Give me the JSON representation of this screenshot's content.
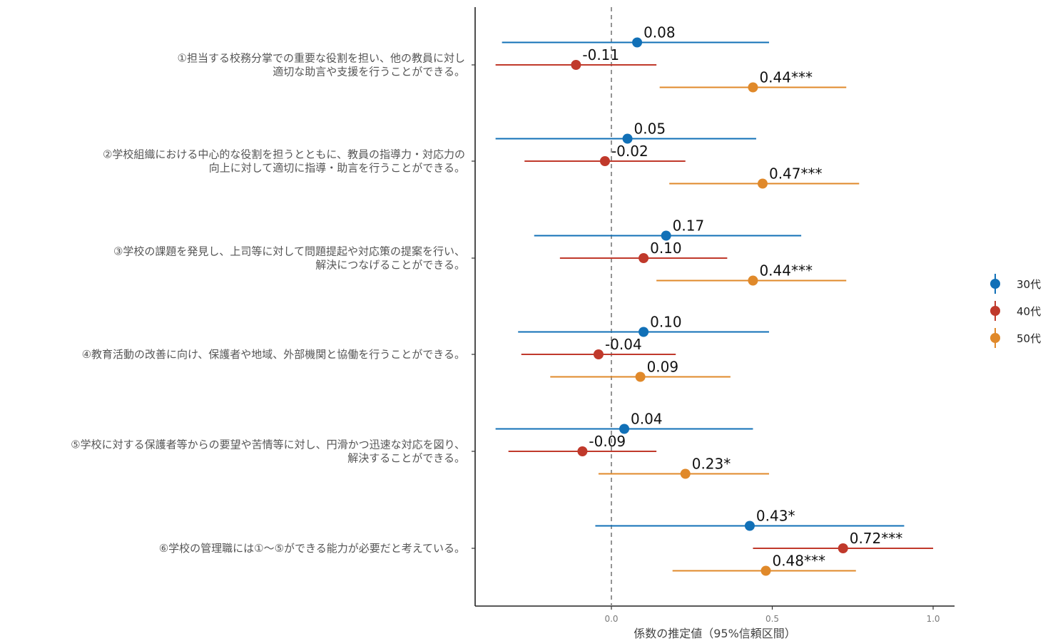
{
  "chart_data": {
    "type": "forest",
    "xlabel": "係数の推定値（95%信頼区間）",
    "xlim": [
      -0.43,
      1.07
    ],
    "xticks": [
      0.0,
      0.5,
      1.0
    ],
    "xtick_labels": [
      "0.0",
      "0.5",
      "1.0"
    ],
    "reference_line": 0.0,
    "legend_position": "right",
    "series": [
      {
        "name": "30代",
        "color": "#1170b7"
      },
      {
        "name": "40代",
        "color": "#c0392b"
      },
      {
        "name": "50代",
        "color": "#e0892a"
      }
    ],
    "categories": [
      {
        "label_lines": [
          "①担当する校務分掌での重要な役割を担い、他の教員に対し",
          "適切な助言や支援を行うことができる。"
        ],
        "estimates": [
          {
            "series": "30代",
            "value": 0.08,
            "ci": [
              -0.34,
              0.49
            ],
            "label": "0.08"
          },
          {
            "series": "40代",
            "value": -0.11,
            "ci": [
              -0.36,
              0.14
            ],
            "label": "-0.11"
          },
          {
            "series": "50代",
            "value": 0.44,
            "ci": [
              0.15,
              0.73
            ],
            "label": "0.44***"
          }
        ]
      },
      {
        "label_lines": [
          "②学校組織における中心的な役割を担うとともに、教員の指導力・対応力の",
          "向上に対して適切に指導・助言を行うことができる。"
        ],
        "estimates": [
          {
            "series": "30代",
            "value": 0.05,
            "ci": [
              -0.36,
              0.45
            ],
            "label": "0.05"
          },
          {
            "series": "40代",
            "value": -0.02,
            "ci": [
              -0.27,
              0.23
            ],
            "label": "-0.02"
          },
          {
            "series": "50代",
            "value": 0.47,
            "ci": [
              0.18,
              0.77
            ],
            "label": "0.47***"
          }
        ]
      },
      {
        "label_lines": [
          "③学校の課題を発見し、上司等に対して問題提起や対応策の提案を行い、",
          "解決につなげることができる。"
        ],
        "estimates": [
          {
            "series": "30代",
            "value": 0.17,
            "ci": [
              -0.24,
              0.59
            ],
            "label": "0.17"
          },
          {
            "series": "40代",
            "value": 0.1,
            "ci": [
              -0.16,
              0.36
            ],
            "label": "0.10"
          },
          {
            "series": "50代",
            "value": 0.44,
            "ci": [
              0.14,
              0.73
            ],
            "label": "0.44***"
          }
        ]
      },
      {
        "label_lines": [
          "④教育活動の改善に向け、保護者や地域、外部機関と協働を行うことができる。"
        ],
        "estimates": [
          {
            "series": "30代",
            "value": 0.1,
            "ci": [
              -0.29,
              0.49
            ],
            "label": "0.10"
          },
          {
            "series": "40代",
            "value": -0.04,
            "ci": [
              -0.28,
              0.2
            ],
            "label": "-0.04"
          },
          {
            "series": "50代",
            "value": 0.09,
            "ci": [
              -0.19,
              0.37
            ],
            "label": "0.09"
          }
        ]
      },
      {
        "label_lines": [
          "⑤学校に対する保護者等からの要望や苦情等に対し、円滑かつ迅速な対応を図り、",
          "解決することができる。"
        ],
        "estimates": [
          {
            "series": "30代",
            "value": 0.04,
            "ci": [
              -0.36,
              0.44
            ],
            "label": "0.04"
          },
          {
            "series": "40代",
            "value": -0.09,
            "ci": [
              -0.32,
              0.14
            ],
            "label": "-0.09"
          },
          {
            "series": "50代",
            "value": 0.23,
            "ci": [
              -0.04,
              0.49
            ],
            "label": "0.23*"
          }
        ]
      },
      {
        "label_lines": [
          "⑥学校の管理職には①～⑤ができる能力が必要だと考えている。"
        ],
        "estimates": [
          {
            "series": "30代",
            "value": 0.43,
            "ci": [
              -0.05,
              0.91
            ],
            "label": "0.43*"
          },
          {
            "series": "40代",
            "value": 0.72,
            "ci": [
              0.44,
              1.0
            ],
            "label": "0.72***"
          },
          {
            "series": "50代",
            "value": 0.48,
            "ci": [
              0.19,
              0.76
            ],
            "label": "0.48***"
          }
        ]
      }
    ]
  }
}
